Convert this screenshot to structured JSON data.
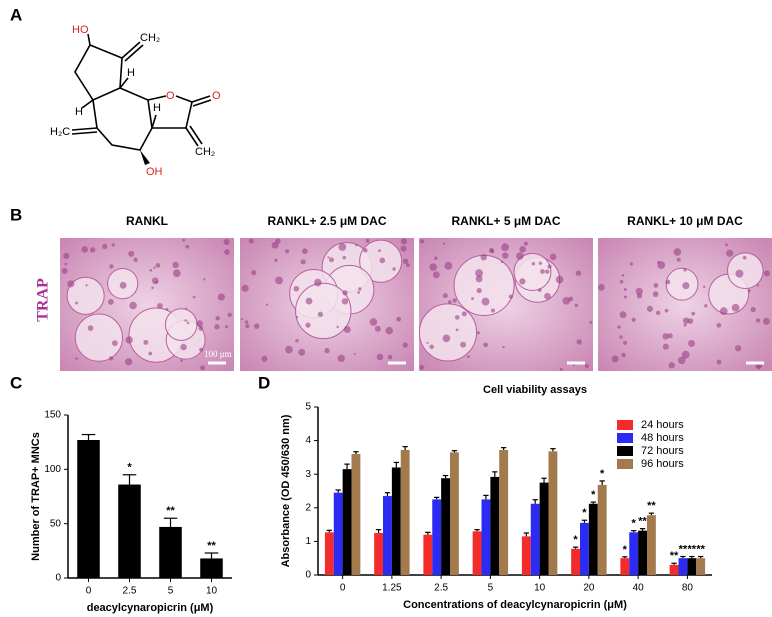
{
  "panel_labels": [
    "A",
    "B",
    "C",
    "D"
  ],
  "structure": {
    "atoms": [
      "HO",
      "CH₂",
      "H",
      "O",
      "O",
      "H",
      "H",
      "H₂C",
      "CH₂",
      "OH"
    ]
  },
  "micrographs": {
    "stain": "TRAP",
    "scale_bar": "100 μm",
    "titles": [
      "RANKL",
      "RANKL+ 2.5 μM DAC",
      "RANKL+ 5 μM DAC",
      "RANKL+ 10 μM DAC"
    ]
  },
  "chart_data": [
    {
      "type": "bar",
      "ylabel": "Number of TRAP+ MNCs",
      "xlabel": "deacylcynaropicrin  (μM)",
      "categories": [
        "0",
        "2.5",
        "5",
        "10"
      ],
      "values": [
        127,
        86,
        47,
        18
      ],
      "errors": [
        5,
        9,
        8,
        5
      ],
      "significance": [
        null,
        "*",
        "**",
        "**"
      ],
      "color": "#000000",
      "ylim": [
        0,
        150
      ],
      "yticks": [
        0,
        50,
        100,
        150
      ]
    },
    {
      "type": "bar",
      "title": "Cell viability assays",
      "ylabel": "Absorbance (OD 450/630 nm)",
      "xlabel": "Concentrations of deacylcynaropicrin  (μM)",
      "categories": [
        "0",
        "1.25",
        "2.5",
        "5",
        "10",
        "20",
        "40",
        "80"
      ],
      "series": [
        {
          "name": "24 hours",
          "color": "#f42b2b",
          "values": [
            1.27,
            1.25,
            1.2,
            1.3,
            1.15,
            0.78,
            0.5,
            0.3
          ],
          "errors": [
            0.06,
            0.1,
            0.07,
            0.05,
            0.1,
            0.05,
            0.04,
            0.05
          ],
          "significance": [
            null,
            null,
            null,
            null,
            null,
            "*",
            "*",
            "**"
          ]
        },
        {
          "name": "48 hours",
          "color": "#2b2bf4",
          "values": [
            2.45,
            2.35,
            2.25,
            2.25,
            2.12,
            1.55,
            1.27,
            0.5
          ],
          "errors": [
            0.08,
            0.1,
            0.06,
            0.12,
            0.12,
            0.08,
            0.05,
            0.05
          ],
          "significance": [
            null,
            null,
            null,
            null,
            null,
            "*",
            "*",
            "**"
          ]
        },
        {
          "name": "72 hours",
          "color": "#000000",
          "values": [
            3.15,
            3.2,
            2.88,
            2.92,
            2.75,
            2.12,
            1.32,
            0.5
          ],
          "errors": [
            0.15,
            0.15,
            0.08,
            0.15,
            0.13,
            0.05,
            0.06,
            0.05
          ],
          "significance": [
            null,
            null,
            null,
            null,
            null,
            "*",
            "**",
            "**"
          ]
        },
        {
          "name": "96 hours",
          "color": "#a37a4c",
          "values": [
            3.6,
            3.72,
            3.65,
            3.72,
            3.68,
            2.68,
            1.78,
            0.5
          ],
          "errors": [
            0.07,
            0.1,
            0.05,
            0.07,
            0.08,
            0.12,
            0.06,
            0.05
          ],
          "significance": [
            null,
            null,
            null,
            null,
            null,
            "*",
            "**",
            "**"
          ]
        }
      ],
      "ylim": [
        0,
        5
      ],
      "yticks": [
        0,
        1,
        2,
        3,
        4,
        5
      ],
      "legend": "upper right"
    }
  ]
}
